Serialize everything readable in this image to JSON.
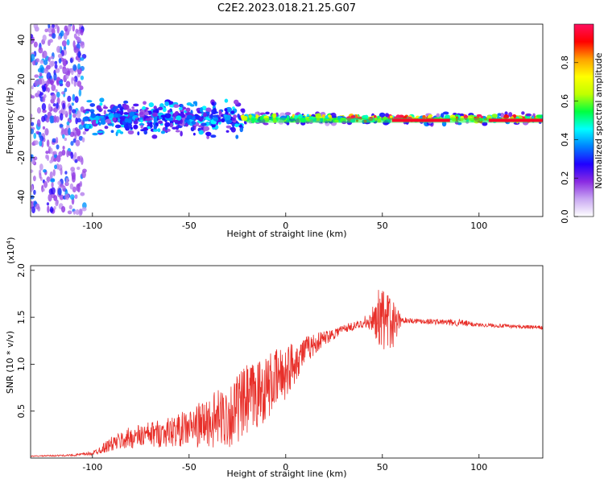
{
  "title": "C2E2.2023.018.21.25.G07",
  "chart_data": [
    {
      "type": "heatmap",
      "xlabel": "Height of straight line (km)",
      "ylabel": "Frequency (Hz)",
      "xlim": [
        -132,
        133
      ],
      "ylim": [
        -50,
        48
      ],
      "xticks": [
        -100,
        -50,
        0,
        50,
        100
      ],
      "yticks": [
        -40,
        -20,
        0,
        20,
        40
      ],
      "colorbar": {
        "label": "Normalized spectral amplitude",
        "range": [
          0,
          1
        ],
        "ticks": [
          "0.0",
          "0.2",
          "0.4",
          "0.6",
          "0.8"
        ],
        "tick_values": [
          0,
          0.2,
          0.4,
          0.6,
          0.8
        ],
        "colormap": [
          "#ffffff",
          "#c9a8f2",
          "#8a2be2",
          "#2000ff",
          "#0080ff",
          "#00ffff",
          "#00ff40",
          "#c0ff00",
          "#ffff00",
          "#ffa000",
          "#ff0000",
          "#ff1060"
        ]
      },
      "bands": [
        {
          "x_range": [
            -132,
            -104
          ],
          "freq_spread": 48,
          "intensity": 0.15,
          "description_of_noise": "scattered"
        },
        {
          "x_range": [
            -104,
            -22
          ],
          "freq_spread": 10,
          "intensity": 0.35
        },
        {
          "x_range": [
            -22,
            30
          ],
          "freq_spread": 3,
          "intensity": 0.6
        },
        {
          "x_range": [
            30,
            133
          ],
          "freq_spread": 3,
          "intensity": 0.85
        }
      ]
    },
    {
      "type": "line",
      "xlabel": "Height of straight line (km)",
      "ylabel": "SNR (10 * v/v)",
      "y_exponent": "(x10",
      "y_exponent_power": "4",
      "y_exponent_close": ")",
      "xlim": [
        -132,
        133
      ],
      "ylim": [
        0,
        2.05
      ],
      "xticks": [
        -100,
        -50,
        0,
        50,
        100
      ],
      "yticks": [
        0.5,
        1.0,
        1.5,
        2.0
      ],
      "ytick_labels": [
        "0.5",
        "1.0",
        "1.5",
        "2.0"
      ],
      "series_color": "#e8302a",
      "envelope": {
        "x": [
          -132,
          -110,
          -100,
          -90,
          -80,
          -70,
          -60,
          -50,
          -40,
          -30,
          -20,
          -10,
          0,
          10,
          20,
          30,
          40,
          45,
          50,
          55,
          60,
          70,
          80,
          90,
          100,
          110,
          120,
          133
        ],
        "mean": [
          0.02,
          0.03,
          0.05,
          0.15,
          0.22,
          0.25,
          0.28,
          0.32,
          0.38,
          0.45,
          0.6,
          0.75,
          0.92,
          1.15,
          1.28,
          1.38,
          1.43,
          1.45,
          1.45,
          1.44,
          1.47,
          1.46,
          1.45,
          1.44,
          1.42,
          1.41,
          1.4,
          1.39
        ],
        "spread": [
          0.005,
          0.01,
          0.02,
          0.08,
          0.12,
          0.14,
          0.16,
          0.2,
          0.28,
          0.35,
          0.4,
          0.35,
          0.3,
          0.15,
          0.08,
          0.05,
          0.04,
          0.1,
          0.35,
          0.3,
          0.03,
          0.03,
          0.03,
          0.04,
          0.02,
          0.02,
          0.02,
          0.02
        ]
      }
    }
  ]
}
